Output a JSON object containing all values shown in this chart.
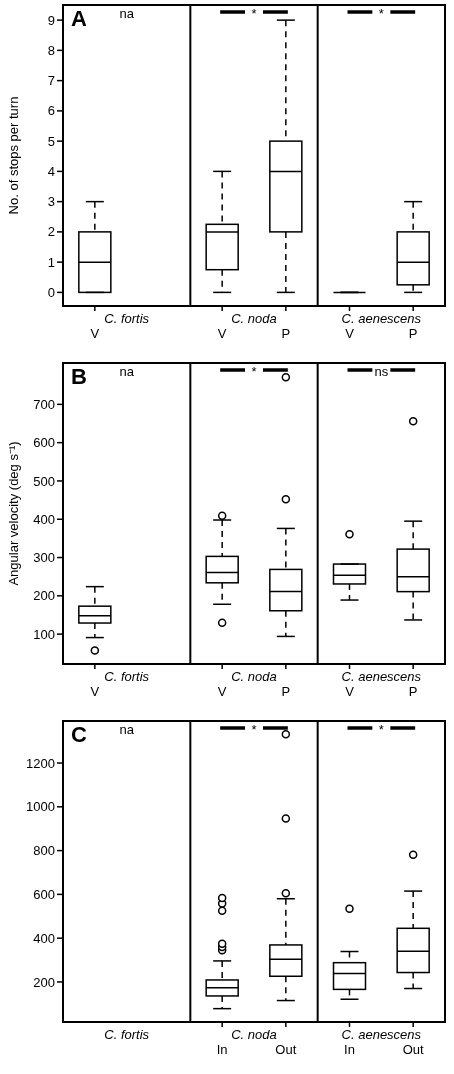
{
  "chart_data": [
    {
      "type": "box",
      "title": "A",
      "ylabel": "No. of stops per turn",
      "color": "#000000",
      "categories": [
        "V",
        null,
        "V",
        "P",
        "V",
        "P"
      ],
      "boxes": [
        {
          "low": 0,
          "q1": 0,
          "median": 1,
          "q3": 2,
          "high": 3
        },
        null,
        {
          "low": 0,
          "q1": 0.75,
          "median": 2,
          "q3": 2.25,
          "high": 4
        },
        {
          "low": 0,
          "q1": 2,
          "median": 4,
          "q3": 5,
          "high": 9
        },
        {
          "low": 0,
          "q1": 0,
          "median": 0,
          "q3": 0,
          "high": 0
        },
        {
          "low": 0,
          "q1": 0.25,
          "median": 1,
          "q3": 2,
          "high": 3
        }
      ],
      "ylim": [
        -0.45,
        9.5
      ],
      "yticks": [
        0,
        1,
        2,
        3,
        4,
        5,
        6,
        7,
        8,
        9
      ],
      "annotations": [
        "na",
        "*",
        "*",
        "C. fortis",
        "C. noda",
        "C. aenescens"
      ]
    },
    {
      "type": "box",
      "title": "B",
      "ylabel": "Angular velocity (deg s⁻¹)",
      "color": "#000000",
      "categories": [
        "V",
        null,
        "V",
        "P",
        "V",
        "P"
      ],
      "boxes": [
        {
          "low": 91,
          "q1": 129,
          "median": 148,
          "q3": 173,
          "high": 224,
          "outliers": [
            57
          ]
        },
        null,
        {
          "low": 178,
          "q1": 234,
          "median": 261,
          "q3": 303,
          "high": 398,
          "outliers": [
            130,
            409
          ]
        },
        {
          "low": 94,
          "q1": 161,
          "median": 211,
          "q3": 269,
          "high": 376,
          "outliers": [
            452,
            771
          ]
        },
        {
          "low": 189,
          "q1": 231,
          "median": 254,
          "q3": 283,
          "high": 283,
          "outliers": [
            361
          ]
        },
        {
          "low": 137,
          "q1": 211,
          "median": 250,
          "q3": 322,
          "high": 395,
          "outliers": [
            656
          ]
        }
      ],
      "ylim": [
        22,
        808
      ],
      "yticks": [
        100,
        200,
        300,
        400,
        500,
        600,
        700
      ],
      "annotations": [
        "na",
        "*",
        "ns",
        "C. fortis",
        "C. noda",
        "C. aenescens"
      ]
    },
    {
      "type": "box",
      "title": "C",
      "color": "#000000",
      "categories": [
        null,
        null,
        "In",
        "Out",
        "In",
        "Out"
      ],
      "boxes": [
        null,
        null,
        {
          "low": 78,
          "q1": 136,
          "median": 174,
          "q3": 209,
          "high": 296,
          "outliers": [
            345,
            360,
            375,
            525,
            558,
            583
          ]
        },
        {
          "low": 115,
          "q1": 226,
          "median": 304,
          "q3": 369,
          "high": 580,
          "outliers": [
            605,
            947,
            1331
          ]
        },
        {
          "low": 121,
          "q1": 166,
          "median": 238,
          "q3": 288,
          "high": 339,
          "outliers": [
            534
          ]
        },
        {
          "low": 170,
          "q1": 243,
          "median": 340,
          "q3": 445,
          "high": 615,
          "outliers": [
            781
          ]
        }
      ],
      "ylim": [
        17,
        1392
      ],
      "yticks": [
        200,
        400,
        600,
        800,
        1000,
        1200
      ],
      "annotations": [
        "na",
        "*",
        "*",
        "C. fortis",
        "C. noda",
        "C. aenescens"
      ]
    }
  ]
}
